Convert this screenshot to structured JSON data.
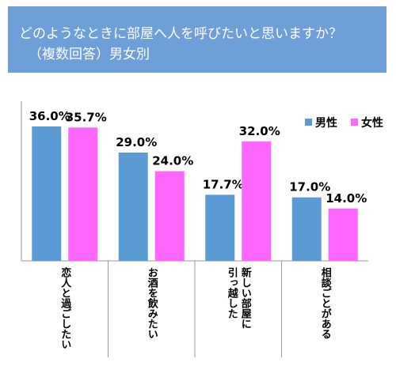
{
  "chart_data": {
    "type": "bar",
    "title": "どのようなときに部屋へ人を呼びたいと思いますか？",
    "subtitle": "（複数回答）男女別",
    "categories": [
      [
        "恋人と過ごしたい"
      ],
      [
        "お酒を飲みたい"
      ],
      [
        "新しい部屋に",
        "引っ越した"
      ],
      [
        "相談ごとがある"
      ]
    ],
    "series": [
      {
        "name": "男性",
        "values": [
          36.0,
          29.0,
          17.7,
          17.0
        ],
        "labels": [
          "36.0%",
          "29.0%",
          "17.7%",
          "17.0%"
        ],
        "color": "#5b9bd5"
      },
      {
        "name": "女性",
        "values": [
          35.7,
          24.0,
          32.0,
          14.0
        ],
        "labels": [
          "35.7%",
          "24.0%",
          "32.0%",
          "14.0%"
        ],
        "color": "#ff66ff"
      }
    ],
    "ylim": [
      0,
      40
    ],
    "legend_position": "top-right",
    "grid": false
  }
}
